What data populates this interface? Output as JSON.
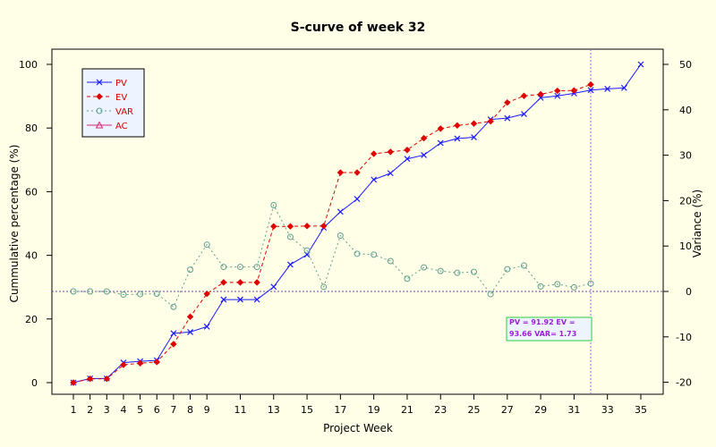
{
  "chart_data": {
    "type": "line",
    "title": "S-curve of week 32",
    "xlabel": "Project Week",
    "ylabel": "Cummulative percentage (%)",
    "y2label": "Variance (%)",
    "xlim": [
      1,
      35
    ],
    "ylim": [
      0,
      100
    ],
    "y2lim": [
      -20,
      50
    ],
    "x_ticks": [
      1,
      2,
      3,
      4,
      5,
      6,
      7,
      8,
      9,
      11,
      13,
      15,
      17,
      19,
      21,
      23,
      25,
      27,
      29,
      31,
      33,
      35
    ],
    "y_ticks": [
      0,
      20,
      40,
      60,
      80,
      100
    ],
    "y2_ticks": [
      -20,
      -10,
      0,
      10,
      20,
      30,
      40,
      50
    ],
    "current_week": 32,
    "series": [
      {
        "name": "PV",
        "color": "#1a1aff",
        "marker": "x",
        "dash": "",
        "x": [
          1,
          2,
          3,
          4,
          5,
          6,
          7,
          8,
          9,
          10,
          11,
          12,
          13,
          14,
          15,
          16,
          17,
          18,
          19,
          20,
          21,
          22,
          23,
          24,
          25,
          26,
          27,
          28,
          29,
          30,
          31,
          32,
          33,
          34,
          35
        ],
        "values": [
          0,
          1.3,
          1.3,
          6.3,
          6.7,
          7,
          15.5,
          15.9,
          17.6,
          26.1,
          26.1,
          26.1,
          30.1,
          37.1,
          40.2,
          48.7,
          53.7,
          57.7,
          63.8,
          65.8,
          70.3,
          71.5,
          75.3,
          76.7,
          77.1,
          82.7,
          83.1,
          84.4,
          89.5,
          90.1,
          90.9,
          91.92,
          92.3,
          92.6,
          100
        ]
      },
      {
        "name": "EV",
        "color": "#e00000",
        "marker": "diamond",
        "dash": "4,3",
        "x": [
          1,
          2,
          3,
          4,
          5,
          6,
          7,
          8,
          9,
          10,
          11,
          12,
          13,
          14,
          15,
          16,
          17,
          18,
          19,
          20,
          21,
          22,
          23,
          24,
          25,
          26,
          27,
          28,
          29,
          30,
          31,
          32
        ],
        "values": [
          0,
          1.2,
          1.2,
          5.6,
          6.1,
          6.5,
          12.1,
          20.7,
          27.9,
          31.5,
          31.5,
          31.5,
          49.1,
          49.1,
          49.2,
          49.2,
          66,
          66,
          71.9,
          72.5,
          73.1,
          76.8,
          79.8,
          80.8,
          81.4,
          82.1,
          88,
          90.1,
          90.6,
          91.7,
          91.8,
          93.66
        ]
      },
      {
        "name": "VAR",
        "color": "#5f9e8f",
        "marker": "circle",
        "dash": "2,3",
        "x": [
          1,
          2,
          3,
          4,
          5,
          6,
          7,
          8,
          9,
          10,
          11,
          12,
          13,
          14,
          15,
          16,
          17,
          18,
          19,
          20,
          21,
          22,
          23,
          24,
          25,
          26,
          27,
          28,
          29,
          30,
          31,
          32
        ],
        "values": [
          0,
          0,
          0,
          -0.7,
          -0.6,
          -0.5,
          -3.4,
          4.8,
          10.3,
          5.4,
          5.4,
          5.4,
          19,
          12,
          9,
          1,
          12.3,
          8.3,
          8.1,
          6.7,
          2.8,
          5.3,
          4.5,
          4.1,
          4.3,
          -0.6,
          4.9,
          5.7,
          1.1,
          1.6,
          0.9,
          1.73
        ]
      },
      {
        "name": "AC",
        "color": "#d6287a",
        "marker": "triangle",
        "dash": "",
        "x": [],
        "values": []
      }
    ],
    "legend_position": "top-left",
    "info_box": {
      "line1": "PV  = 91.92  EV  =",
      "line2": "93.66  VAR= 1.73"
    }
  }
}
